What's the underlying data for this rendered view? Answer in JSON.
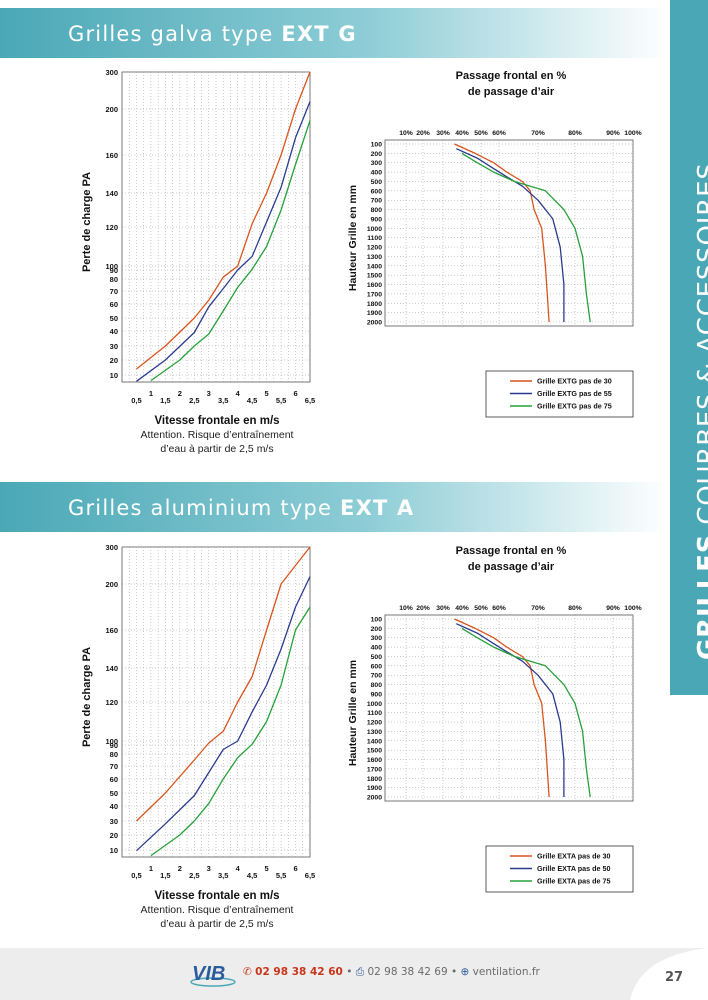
{
  "sections": [
    {
      "title_normal": "Grilles galva type ",
      "title_bold": "EXT G",
      "pressure_chart": {
        "ylabel": "Perte de charge PA",
        "xlabel": "Vitesse frontale en m/s",
        "note_line1": "Attention. Risque d’entraînement",
        "note_line2": "d’eau à partir de 2,5 m/s",
        "y_ticks": [
          "300",
          "200",
          "160",
          "140",
          "120",
          "100",
          "90",
          "80",
          "70",
          "60",
          "50",
          "40",
          "30",
          "20",
          "10"
        ],
        "x_ticks_upper": [
          "1",
          "2",
          "3",
          "4",
          "5",
          "6"
        ],
        "x_ticks_lower": [
          "0,5",
          "1,5",
          "2,5",
          "3,5",
          "4,5",
          "5,5",
          "6,5"
        ]
      },
      "passage_chart": {
        "title_line1": "Passage frontal en %",
        "title_line2": "de passage d’air",
        "ylabel": "Hauteur Grille en mm",
        "x_ticks": [
          "10%",
          "20%",
          "30%",
          "40%",
          "50%",
          "60%",
          "70%",
          "80%",
          "90%",
          "100%"
        ],
        "y_ticks": [
          "100",
          "200",
          "300",
          "400",
          "500",
          "600",
          "700",
          "800",
          "900",
          "1000",
          "1100",
          "1200",
          "1300",
          "1400",
          "1500",
          "1600",
          "1700",
          "1800",
          "1900",
          "2000"
        ],
        "legend": [
          "Grille EXTG pas de 30",
          "Grille EXTG pas de 55",
          "Grille EXTG pas de 75"
        ]
      }
    },
    {
      "title_normal": "Grilles aluminium type ",
      "title_bold": "EXT A",
      "pressure_chart": {
        "ylabel": "Perte de charge PA",
        "xlabel": "Vitesse frontale en m/s",
        "note_line1": "Attention. Risque d’entraînement",
        "note_line2": "d’eau à partir de 2,5 m/s",
        "y_ticks": [
          "300",
          "200",
          "160",
          "140",
          "120",
          "100",
          "90",
          "80",
          "70",
          "60",
          "50",
          "40",
          "30",
          "20",
          "10"
        ],
        "x_ticks_upper": [
          "1",
          "2",
          "3",
          "4",
          "5",
          "6"
        ],
        "x_ticks_lower": [
          "0,5",
          "1,5",
          "2,5",
          "3,5",
          "4,5",
          "5,5",
          "6,5"
        ]
      },
      "passage_chart": {
        "title_line1": "Passage frontal en %",
        "title_line2": "de passage d’air",
        "ylabel": "Hauteur Grille en mm",
        "x_ticks": [
          "10%",
          "20%",
          "30%",
          "40%",
          "50%",
          "60%",
          "70%",
          "80%",
          "90%",
          "100%"
        ],
        "y_ticks": [
          "100",
          "200",
          "300",
          "400",
          "500",
          "600",
          "700",
          "800",
          "900",
          "1000",
          "1100",
          "1200",
          "1300",
          "1400",
          "1500",
          "1600",
          "1700",
          "1800",
          "1900",
          "2000"
        ],
        "legend": [
          "Grille EXTA pas de 30",
          "Grille EXTA pas de 50",
          "Grille EXTA pas de 75"
        ]
      }
    }
  ],
  "side_tab": {
    "bold": "GRILLES",
    "light": " COURBES & ACCESSOIRES"
  },
  "footer": {
    "logo_text": "VIB",
    "phone": "02 98 38 42 60",
    "separator": " • ",
    "fax": "02 98 38 42 69",
    "website": "ventilation.fr",
    "page_number": "27"
  },
  "colors": {
    "series": [
      "#d9541e",
      "#2a3b8f",
      "#27a03a"
    ],
    "accent": "#4aa8b6"
  },
  "chart_data": [
    {
      "type": "line",
      "title": "Grilles galva type EXT G — Perte de charge",
      "xlabel": "Vitesse frontale en m/s",
      "ylabel": "Perte de charge PA",
      "xlim": [
        0,
        6.5
      ],
      "y_scale_ticks": [
        10,
        20,
        30,
        40,
        50,
        60,
        70,
        80,
        90,
        100,
        120,
        140,
        160,
        200,
        300
      ],
      "series": [
        {
          "name": "pas de 30",
          "x": [
            0.5,
            1.5,
            2.5,
            3,
            3.5,
            4,
            4.5,
            5,
            5.5,
            6,
            6.5
          ],
          "y": [
            14,
            30,
            50,
            63,
            82,
            100,
            122,
            140,
            160,
            200,
            300
          ]
        },
        {
          "name": "pas de 55",
          "x": [
            0.5,
            1.5,
            2.5,
            3,
            3.5,
            4,
            4.5,
            5,
            5.5,
            6,
            6.5
          ],
          "y": [
            1,
            20,
            39,
            58,
            72,
            90,
            105,
            123,
            143,
            175,
            220
          ]
        },
        {
          "name": "pas de 75",
          "x": [
            1,
            2,
            2.5,
            3,
            3.5,
            4,
            4.5,
            5,
            5.5,
            6,
            6.5
          ],
          "y": [
            2,
            20,
            30,
            38,
            55,
            73,
            92,
            110,
            130,
            155,
            190
          ]
        }
      ]
    },
    {
      "type": "line",
      "title": "Grilles galva type EXT G — Passage frontal en % de passage d’air",
      "xlabel": "Passage frontal en %",
      "ylabel": "Hauteur Grille en mm",
      "xlim": [
        10,
        100
      ],
      "ylim": [
        100,
        2000
      ],
      "series": [
        {
          "name": "Grille EXTG pas de 30",
          "x": [
            36,
            47,
            57,
            62,
            66,
            68,
            69,
            71,
            72,
            73
          ],
          "y": [
            100,
            200,
            300,
            400,
            500,
            600,
            800,
            1000,
            1400,
            2000
          ]
        },
        {
          "name": "Grille EXTG pas de 55",
          "x": [
            37,
            48,
            56,
            62,
            66,
            70,
            74,
            76,
            77,
            77
          ],
          "y": [
            150,
            250,
            350,
            450,
            550,
            700,
            900,
            1200,
            1600,
            2000
          ]
        },
        {
          "name": "Grille EXTG pas de 75",
          "x": [
            40,
            48,
            57,
            64,
            72,
            77,
            80,
            82,
            83,
            84
          ],
          "y": [
            200,
            300,
            400,
            500,
            600,
            800,
            1000,
            1300,
            1700,
            2000
          ]
        }
      ]
    },
    {
      "type": "line",
      "title": "Grilles aluminium type EXT A — Perte de charge",
      "xlabel": "Vitesse frontale en m/s",
      "ylabel": "Perte de charge PA",
      "xlim": [
        0,
        6.5
      ],
      "y_scale_ticks": [
        10,
        20,
        30,
        40,
        50,
        60,
        70,
        80,
        90,
        100,
        120,
        140,
        160,
        200,
        300
      ],
      "series": [
        {
          "name": "pas de 30",
          "x": [
            0.5,
            1.5,
            2.5,
            3,
            3.5,
            4,
            4.5,
            5,
            5.5,
            6,
            6.5
          ],
          "y": [
            30,
            50,
            75,
            95,
            105,
            120,
            135,
            160,
            200,
            250,
            300
          ]
        },
        {
          "name": "pas de 55",
          "x": [
            0.5,
            1.5,
            2.5,
            3,
            3.5,
            4,
            4.5,
            5,
            5.5,
            6,
            6.5
          ],
          "y": [
            9,
            28,
            48,
            65,
            85,
            100,
            115,
            130,
            150,
            180,
            220
          ]
        },
        {
          "name": "pas de 75",
          "x": [
            1,
            2,
            2.5,
            3,
            3.5,
            4,
            4.5,
            5,
            5.5,
            6,
            6.5
          ],
          "y": [
            2,
            20,
            30,
            42,
            60,
            77,
            92,
            110,
            130,
            160,
            180
          ]
        }
      ]
    },
    {
      "type": "line",
      "title": "Grilles aluminium type EXT A — Passage frontal en % de passage d’air",
      "xlabel": "Passage frontal en %",
      "ylabel": "Hauteur Grille en mm",
      "xlim": [
        10,
        100
      ],
      "ylim": [
        100,
        2000
      ],
      "series": [
        {
          "name": "Grille EXTA pas de 30",
          "x": [
            36,
            47,
            57,
            62,
            66,
            68,
            69,
            71,
            72,
            73
          ],
          "y": [
            100,
            200,
            300,
            400,
            500,
            600,
            800,
            1000,
            1400,
            2000
          ]
        },
        {
          "name": "Grille EXTA pas de 50",
          "x": [
            37,
            48,
            56,
            62,
            66,
            70,
            74,
            76,
            77,
            77
          ],
          "y": [
            150,
            250,
            350,
            450,
            550,
            700,
            900,
            1200,
            1600,
            2000
          ]
        },
        {
          "name": "Grille EXTA pas de 75",
          "x": [
            40,
            48,
            57,
            64,
            72,
            77,
            80,
            82,
            83,
            84
          ],
          "y": [
            200,
            300,
            400,
            500,
            600,
            800,
            1000,
            1300,
            1700,
            2000
          ]
        }
      ]
    }
  ]
}
